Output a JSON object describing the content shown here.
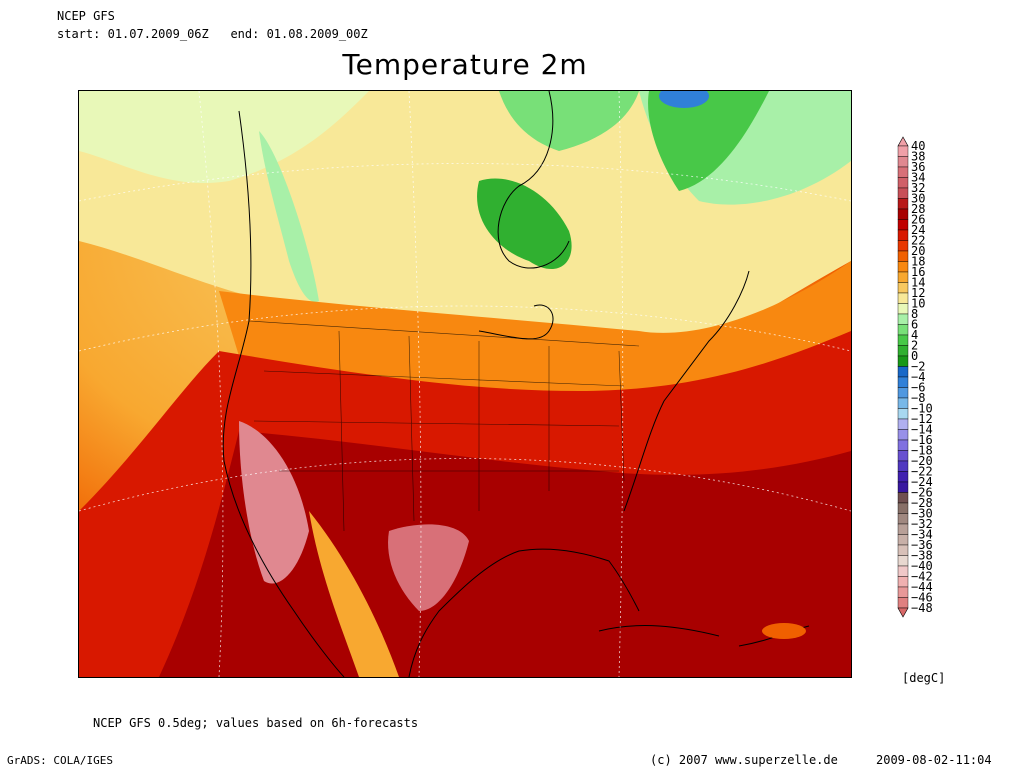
{
  "header": {
    "model": "NCEP GFS",
    "start_label": "start:",
    "start_value": "01.07.2009_06Z",
    "end_label": "end:",
    "end_value": "01.08.2009_00Z"
  },
  "title": "Temperature 2m",
  "colorbar": {
    "unit": "[degC]",
    "levels": [
      40,
      38,
      36,
      34,
      32,
      30,
      28,
      26,
      24,
      22,
      20,
      18,
      16,
      14,
      12,
      10,
      8,
      6,
      4,
      2,
      0,
      -2,
      -4,
      -6,
      -8,
      -10,
      -12,
      -14,
      -16,
      -18,
      -20,
      -22,
      -24,
      -26,
      -28,
      -30,
      -32,
      -34,
      -36,
      -38,
      -40,
      -42,
      -44,
      -46,
      -48
    ],
    "colors": [
      "#f0a0a8",
      "#e08890",
      "#d87078",
      "#d06068",
      "#c85058",
      "#b81818",
      "#a80000",
      "#c00000",
      "#d81800",
      "#e83800",
      "#f06000",
      "#f88810",
      "#f8a830",
      "#f8c860",
      "#f8e898",
      "#e8f8b8",
      "#a8f0a8",
      "#78e078",
      "#48c848",
      "#30b030",
      "#189818",
      "#1868c8",
      "#3080d8",
      "#5098e0",
      "#78b8e8",
      "#a8d8f0",
      "#b0b0f0",
      "#9890e8",
      "#8070e0",
      "#6850d0",
      "#5038c0",
      "#4020b0",
      "#3818a0",
      "#705050",
      "#887068",
      "#a08880",
      "#b8a098",
      "#c8b0a8",
      "#d8c0b8",
      "#e8d8d0",
      "#f0c8c8",
      "#f0b0b0",
      "#e89898",
      "#e08080",
      "#d86868"
    ]
  },
  "footer": {
    "note": "NCEP GFS 0.5deg; values based on 6h-forecasts",
    "software": "GrADS: COLA/IGES",
    "copyright": "(c) 2007 www.superzelle.de",
    "timestamp": "2009-08-02-11:04"
  }
}
